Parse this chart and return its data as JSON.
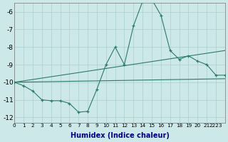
{
  "xlabel": "Humidex (Indice chaleur)",
  "bg_color": "#cce8e8",
  "line_color": "#2d7a6a",
  "grid_color": "#aacfcf",
  "line1_x": [
    0,
    1,
    2,
    3,
    4,
    5,
    6,
    7,
    8,
    9,
    10,
    11,
    12,
    13,
    14,
    15,
    16,
    17,
    18,
    19,
    20,
    21,
    22,
    23
  ],
  "line1_y": [
    -10.0,
    -10.2,
    -10.5,
    -11.0,
    -11.05,
    -11.05,
    -11.2,
    -11.7,
    -11.65,
    -10.4,
    -9.0,
    -8.0,
    -9.0,
    -6.8,
    -5.4,
    -5.3,
    -6.2,
    -8.2,
    -8.7,
    -8.5,
    -8.8,
    -9.0,
    -9.6,
    -9.6
  ],
  "line2_x": [
    0,
    23
  ],
  "line2_y": [
    -10.0,
    -8.2
  ],
  "line3_x": [
    0,
    23
  ],
  "line3_y": [
    -10.0,
    -9.8
  ],
  "xlim": [
    0,
    23
  ],
  "ylim": [
    -12.3,
    -5.5
  ],
  "yticks": [
    -12,
    -11,
    -10,
    -9,
    -8,
    -7,
    -6
  ],
  "xtick_positions": [
    0,
    1,
    2,
    3,
    4,
    5,
    6,
    7,
    8,
    9,
    10,
    11,
    12,
    13,
    14,
    15,
    16,
    17,
    18,
    19,
    20,
    21,
    22
  ],
  "xtick_labels": [
    "0",
    "1",
    "2",
    "3",
    "4",
    "5",
    "6",
    "7",
    "8",
    "9",
    "10",
    "11",
    "12",
    "13",
    "14",
    "15",
    "16",
    "17",
    "18",
    "19",
    "20",
    "21",
    "2223"
  ]
}
